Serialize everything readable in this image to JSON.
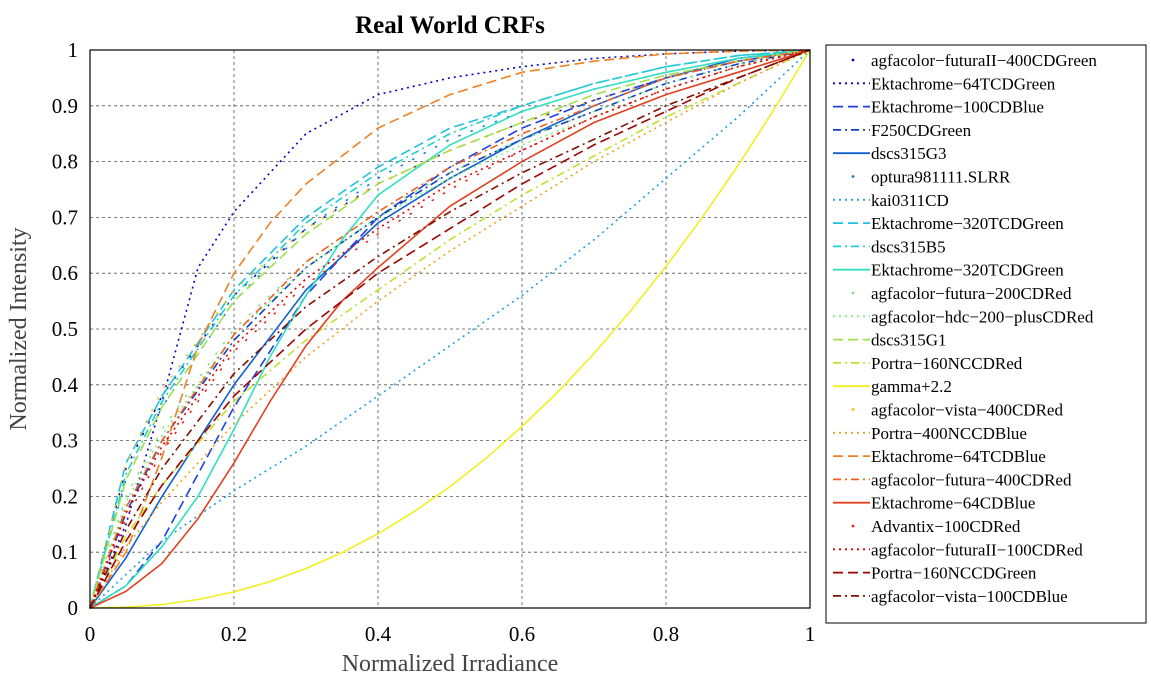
{
  "chart_data": {
    "type": "line",
    "title": "Real World CRFs",
    "xlabel": "Normalized Irradiance",
    "ylabel": "Normalized Intensity",
    "xlim": [
      0,
      1
    ],
    "ylim": [
      0,
      1
    ],
    "x_ticks": [
      "0",
      "0.2",
      "0.4",
      "0.6",
      "0.8",
      "1"
    ],
    "y_ticks": [
      "0",
      "0.1",
      "0.2",
      "0.3",
      "0.4",
      "0.5",
      "0.6",
      "0.7",
      "0.8",
      "0.9",
      "1"
    ],
    "grid": true,
    "legend_position": "right",
    "series": [
      {
        "name": "agfacolor−futuraII−400CDGreen",
        "color": "#0000c8",
        "style": "dot",
        "x": [
          0,
          0.05,
          0.1,
          0.2,
          0.3,
          0.4,
          0.5,
          0.6,
          0.7,
          0.8,
          0.9,
          1
        ],
        "y": [
          0,
          0.25,
          0.38,
          0.56,
          0.68,
          0.76,
          0.82,
          0.87,
          0.91,
          0.95,
          0.98,
          1
        ]
      },
      {
        "name": "Ektachrome−64TCDGreen",
        "color": "#0000c8",
        "style": "dotted",
        "x": [
          0,
          0.05,
          0.1,
          0.15,
          0.2,
          0.3,
          0.4,
          0.5,
          0.6,
          0.7,
          0.8,
          0.9,
          1
        ],
        "y": [
          0,
          0.15,
          0.37,
          0.61,
          0.71,
          0.85,
          0.92,
          0.95,
          0.97,
          0.985,
          0.993,
          0.998,
          1
        ]
      },
      {
        "name": "Ektachrome−100CDBlue",
        "color": "#2040e0",
        "style": "dashed",
        "x": [
          0,
          0.05,
          0.1,
          0.15,
          0.2,
          0.3,
          0.4,
          0.5,
          0.6,
          0.7,
          0.8,
          0.9,
          1
        ],
        "y": [
          0,
          0.04,
          0.12,
          0.24,
          0.36,
          0.56,
          0.7,
          0.79,
          0.86,
          0.91,
          0.95,
          0.98,
          1
        ]
      },
      {
        "name": "F250CDGreen",
        "color": "#1040c0",
        "style": "dashdot",
        "x": [
          0,
          0.05,
          0.1,
          0.2,
          0.3,
          0.4,
          0.5,
          0.6,
          0.7,
          0.8,
          0.9,
          1
        ],
        "y": [
          0,
          0.17,
          0.3,
          0.48,
          0.61,
          0.7,
          0.78,
          0.84,
          0.89,
          0.94,
          0.975,
          1
        ]
      },
      {
        "name": "dscs315G3",
        "color": "#1060d0",
        "style": "solid",
        "x": [
          0,
          0.05,
          0.1,
          0.15,
          0.2,
          0.3,
          0.4,
          0.5,
          0.6,
          0.7,
          0.8,
          0.9,
          1
        ],
        "y": [
          0,
          0.09,
          0.2,
          0.3,
          0.4,
          0.57,
          0.69,
          0.77,
          0.84,
          0.9,
          0.95,
          0.985,
          1
        ]
      },
      {
        "name": "optura981111.SLRR",
        "color": "#1080c0",
        "style": "dot",
        "x": [
          0,
          0.05,
          0.1,
          0.2,
          0.3,
          0.4,
          0.5,
          0.6,
          0.7,
          0.8,
          0.9,
          1
        ],
        "y": [
          0,
          0.23,
          0.36,
          0.55,
          0.68,
          0.77,
          0.84,
          0.89,
          0.93,
          0.96,
          0.985,
          1
        ]
      },
      {
        "name": "kai0311CD",
        "color": "#20a0e0",
        "style": "dotted",
        "x": [
          0,
          0.1,
          0.2,
          0.3,
          0.4,
          0.5,
          0.6,
          0.7,
          0.8,
          0.9,
          1
        ],
        "y": [
          0,
          0.12,
          0.21,
          0.29,
          0.38,
          0.47,
          0.56,
          0.66,
          0.77,
          0.88,
          1
        ]
      },
      {
        "name": "Ektachrome−320TCDGreen",
        "color": "#20c0e0",
        "style": "dashed",
        "x": [
          0,
          0.05,
          0.1,
          0.2,
          0.3,
          0.4,
          0.5,
          0.6,
          0.7,
          0.8,
          0.9,
          1
        ],
        "y": [
          0,
          0.26,
          0.38,
          0.57,
          0.7,
          0.79,
          0.86,
          0.9,
          0.94,
          0.97,
          0.99,
          1
        ]
      },
      {
        "name": "dscs315B5",
        "color": "#20d0d0",
        "style": "dashdot",
        "x": [
          0,
          0.05,
          0.1,
          0.2,
          0.3,
          0.4,
          0.5,
          0.6,
          0.7,
          0.8,
          0.9,
          1
        ],
        "y": [
          0,
          0.24,
          0.37,
          0.56,
          0.69,
          0.78,
          0.85,
          0.9,
          0.94,
          0.97,
          0.99,
          1
        ]
      },
      {
        "name": "Ektachrome−320TCDGreen",
        "color": "#30e0c0",
        "style": "solid",
        "x": [
          0,
          0.05,
          0.1,
          0.15,
          0.2,
          0.25,
          0.3,
          0.35,
          0.4,
          0.5,
          0.6,
          0.7,
          0.8,
          0.9,
          1
        ],
        "y": [
          0,
          0.04,
          0.11,
          0.2,
          0.32,
          0.45,
          0.56,
          0.66,
          0.74,
          0.83,
          0.89,
          0.93,
          0.96,
          0.985,
          1
        ]
      },
      {
        "name": "agfacolor−futura−200CDRed",
        "color": "#80e080",
        "style": "dot",
        "x": [
          0,
          0.05,
          0.1,
          0.2,
          0.3,
          0.4,
          0.5,
          0.6,
          0.7,
          0.8,
          0.9,
          1
        ],
        "y": [
          0,
          0.2,
          0.32,
          0.5,
          0.62,
          0.71,
          0.78,
          0.84,
          0.89,
          0.94,
          0.975,
          1
        ]
      },
      {
        "name": "agfacolor−hdc−200−plusCDRed",
        "color": "#80f080",
        "style": "dotted",
        "x": [
          0,
          0.05,
          0.1,
          0.2,
          0.3,
          0.4,
          0.5,
          0.6,
          0.7,
          0.8,
          0.9,
          1
        ],
        "y": [
          0,
          0.19,
          0.31,
          0.49,
          0.61,
          0.7,
          0.77,
          0.83,
          0.88,
          0.93,
          0.97,
          1
        ]
      },
      {
        "name": "dscs315G1",
        "color": "#a0e050",
        "style": "dashed",
        "x": [
          0,
          0.05,
          0.1,
          0.2,
          0.3,
          0.4,
          0.5,
          0.6,
          0.7,
          0.8,
          0.9,
          1
        ],
        "y": [
          0,
          0.23,
          0.36,
          0.55,
          0.67,
          0.76,
          0.82,
          0.87,
          0.92,
          0.955,
          0.98,
          1
        ]
      },
      {
        "name": "Portra−160NCCDRed",
        "color": "#c0e030",
        "style": "dashdot",
        "x": [
          0,
          0.05,
          0.1,
          0.2,
          0.3,
          0.4,
          0.5,
          0.6,
          0.7,
          0.8,
          0.9,
          1
        ],
        "y": [
          0,
          0.13,
          0.22,
          0.37,
          0.48,
          0.57,
          0.66,
          0.74,
          0.81,
          0.88,
          0.94,
          1
        ]
      },
      {
        "name": "gamma+2.2",
        "color": "#f0f020",
        "style": "solid",
        "x": [
          0,
          0.05,
          0.1,
          0.15,
          0.2,
          0.25,
          0.3,
          0.35,
          0.4,
          0.45,
          0.5,
          0.55,
          0.6,
          0.65,
          0.7,
          0.75,
          0.8,
          0.85,
          0.9,
          0.95,
          1
        ],
        "y": [
          0,
          0.0014,
          0.0063,
          0.0153,
          0.0289,
          0.0474,
          0.0707,
          0.0993,
          0.133,
          0.1725,
          0.2176,
          0.2683,
          0.3252,
          0.3874,
          0.4561,
          0.5311,
          0.6121,
          0.6992,
          0.7931,
          0.8933,
          1
        ]
      },
      {
        "name": "agfacolor−vista−400CDRed",
        "color": "#f0c020",
        "style": "dot",
        "x": [
          0,
          0.05,
          0.1,
          0.2,
          0.3,
          0.4,
          0.5,
          0.6,
          0.7,
          0.8,
          0.9,
          1
        ],
        "y": [
          0,
          0.26,
          0.39,
          0.57,
          0.68,
          0.76,
          0.82,
          0.87,
          0.91,
          0.95,
          0.98,
          1
        ]
      },
      {
        "name": "Portra−400NCCDBlue",
        "color": "#f0a020",
        "style": "dotted",
        "x": [
          0,
          0.05,
          0.1,
          0.2,
          0.3,
          0.4,
          0.5,
          0.6,
          0.7,
          0.8,
          0.9,
          1
        ],
        "y": [
          0,
          0.11,
          0.19,
          0.33,
          0.45,
          0.55,
          0.64,
          0.72,
          0.8,
          0.87,
          0.94,
          1
        ]
      },
      {
        "name": "Ektachrome−64TCDBlue",
        "color": "#f08020",
        "style": "dashed",
        "x": [
          0,
          0.05,
          0.1,
          0.15,
          0.2,
          0.25,
          0.3,
          0.4,
          0.5,
          0.6,
          0.7,
          0.8,
          0.9,
          1
        ],
        "y": [
          0,
          0.1,
          0.27,
          0.47,
          0.6,
          0.69,
          0.76,
          0.86,
          0.92,
          0.96,
          0.98,
          0.993,
          0.998,
          1
        ]
      },
      {
        "name": "agfacolor−futura−400CDRed",
        "color": "#f06020",
        "style": "dashdot",
        "x": [
          0,
          0.05,
          0.1,
          0.2,
          0.3,
          0.4,
          0.5,
          0.6,
          0.7,
          0.8,
          0.9,
          1
        ],
        "y": [
          0,
          0.18,
          0.3,
          0.49,
          0.62,
          0.71,
          0.79,
          0.85,
          0.9,
          0.95,
          0.98,
          1
        ]
      },
      {
        "name": "Ektachrome−64CDBlue",
        "color": "#e04020",
        "style": "solid",
        "x": [
          0,
          0.05,
          0.1,
          0.15,
          0.2,
          0.25,
          0.3,
          0.35,
          0.4,
          0.5,
          0.6,
          0.7,
          0.8,
          0.9,
          1
        ],
        "y": [
          0,
          0.03,
          0.08,
          0.16,
          0.26,
          0.37,
          0.47,
          0.55,
          0.61,
          0.72,
          0.8,
          0.87,
          0.92,
          0.96,
          1
        ]
      },
      {
        "name": "Advantix−100CDRed",
        "color": "#e02020",
        "style": "dot",
        "x": [
          0,
          0.05,
          0.1,
          0.2,
          0.3,
          0.4,
          0.5,
          0.6,
          0.7,
          0.8,
          0.9,
          1
        ],
        "y": [
          0,
          0.16,
          0.28,
          0.46,
          0.58,
          0.67,
          0.75,
          0.82,
          0.88,
          0.93,
          0.97,
          1
        ]
      },
      {
        "name": "agfacolor−futuraII−100CDRed",
        "color": "#e00000",
        "style": "dotted",
        "x": [
          0,
          0.05,
          0.1,
          0.2,
          0.3,
          0.4,
          0.5,
          0.6,
          0.7,
          0.8,
          0.9,
          1
        ],
        "y": [
          0,
          0.17,
          0.29,
          0.47,
          0.59,
          0.68,
          0.76,
          0.82,
          0.88,
          0.93,
          0.97,
          1
        ]
      },
      {
        "name": "Portra−160NCCDGreen",
        "color": "#a00000",
        "style": "dashed",
        "x": [
          0,
          0.05,
          0.1,
          0.2,
          0.3,
          0.4,
          0.5,
          0.6,
          0.7,
          0.8,
          0.9,
          1
        ],
        "y": [
          0,
          0.12,
          0.22,
          0.38,
          0.5,
          0.6,
          0.68,
          0.76,
          0.83,
          0.89,
          0.95,
          1
        ]
      },
      {
        "name": "agfacolor−vista−100CDBlue",
        "color": "#801000",
        "style": "dashdot",
        "x": [
          0,
          0.05,
          0.1,
          0.2,
          0.3,
          0.4,
          0.5,
          0.6,
          0.7,
          0.8,
          0.9,
          1
        ],
        "y": [
          0,
          0.14,
          0.25,
          0.42,
          0.54,
          0.63,
          0.71,
          0.78,
          0.84,
          0.9,
          0.95,
          1
        ]
      }
    ]
  }
}
